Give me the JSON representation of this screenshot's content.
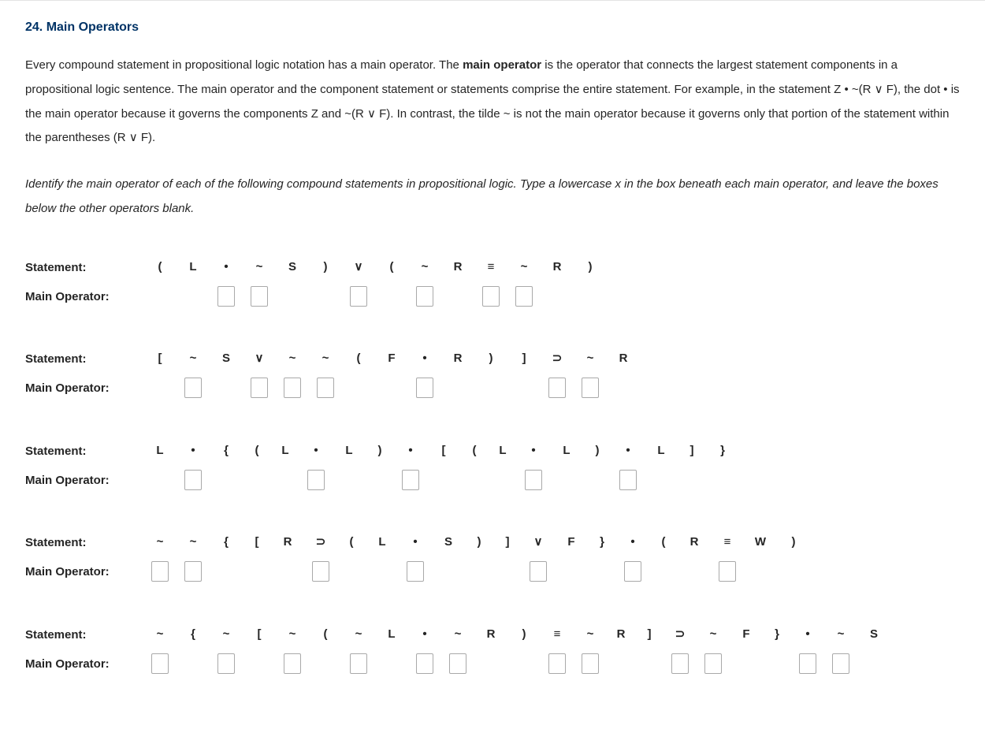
{
  "title": "24. Main Operators",
  "para1_a": "Every compound statement in propositional logic notation has a main operator. The ",
  "para1_b": "main operator",
  "para1_c": " is the operator that connects the largest statement components in a propositional logic sentence. The main operator and the component statement or statements comprise the entire statement. For example, in the statement Z • ~(R ∨ F), the dot • is the main operator because it governs the components Z and ~(R ∨ F). In contrast, the tilde ~ is not the main operator because it governs only that portion of the statement within the parentheses (R ∨ F).",
  "instructions": "Identify the main operator of each of the following compound statements in propositional logic. Type a lowercase x in the box beneath each main operator, and leave the boxes below the other operators blank.",
  "label_statement": "Statement:",
  "label_mainop": "Main Operator:",
  "problems": [
    {
      "cells": [
        {
          "t": "(",
          "box": false
        },
        {
          "t": "L",
          "box": false
        },
        {
          "t": "•",
          "box": true
        },
        {
          "t": "~",
          "box": true
        },
        {
          "t": "S",
          "box": false
        },
        {
          "t": ")",
          "box": false
        },
        {
          "t": "∨",
          "box": true
        },
        {
          "t": "(",
          "box": false
        },
        {
          "t": "~",
          "box": true
        },
        {
          "t": "R",
          "box": false
        },
        {
          "t": "≡",
          "box": true
        },
        {
          "t": "~",
          "box": true
        },
        {
          "t": "R",
          "box": false
        },
        {
          "t": ")",
          "box": false
        }
      ]
    },
    {
      "cells": [
        {
          "t": "[",
          "box": false
        },
        {
          "t": "~",
          "box": true
        },
        {
          "t": "S",
          "box": false
        },
        {
          "t": "∨",
          "box": true
        },
        {
          "t": "~",
          "box": true
        },
        {
          "t": "~",
          "box": true
        },
        {
          "t": "(",
          "box": false
        },
        {
          "t": "F",
          "box": false
        },
        {
          "t": "•",
          "box": true
        },
        {
          "t": "R",
          "box": false
        },
        {
          "t": ")",
          "box": false
        },
        {
          "t": "]",
          "box": false
        },
        {
          "t": "⊃",
          "box": true
        },
        {
          "t": "~",
          "box": true
        },
        {
          "t": "R",
          "box": false
        }
      ]
    },
    {
      "cells": [
        {
          "t": "L",
          "box": false
        },
        {
          "t": "•",
          "box": true
        },
        {
          "t": "{",
          "box": false
        },
        {
          "t": "(",
          "box": false,
          "cls": "tight"
        },
        {
          "t": "L",
          "box": false,
          "cls": "tight"
        },
        {
          "t": "•",
          "box": true
        },
        {
          "t": "L",
          "box": false
        },
        {
          "t": ")",
          "box": false,
          "cls": "tight"
        },
        {
          "t": "•",
          "box": true
        },
        {
          "t": "[",
          "box": false
        },
        {
          "t": "(",
          "box": false,
          "cls": "tight"
        },
        {
          "t": "L",
          "box": false,
          "cls": "tight"
        },
        {
          "t": "•",
          "box": true
        },
        {
          "t": "L",
          "box": false
        },
        {
          "t": ")",
          "box": false,
          "cls": "tight"
        },
        {
          "t": "•",
          "box": true
        },
        {
          "t": "L",
          "box": false
        },
        {
          "t": "]",
          "box": false,
          "cls": "tight"
        },
        {
          "t": "}",
          "box": false
        }
      ]
    },
    {
      "cells": [
        {
          "t": "~",
          "box": true
        },
        {
          "t": "~",
          "box": true
        },
        {
          "t": "{",
          "box": false
        },
        {
          "t": "[",
          "box": false,
          "cls": "tight"
        },
        {
          "t": "R",
          "box": false
        },
        {
          "t": "⊃",
          "box": true
        },
        {
          "t": "(",
          "box": false,
          "cls": "tight"
        },
        {
          "t": "L",
          "box": false
        },
        {
          "t": "•",
          "box": true
        },
        {
          "t": "S",
          "box": false
        },
        {
          "t": ")",
          "box": false,
          "cls": "tight"
        },
        {
          "t": "]",
          "box": false,
          "cls": "tight"
        },
        {
          "t": "∨",
          "box": true
        },
        {
          "t": "F",
          "box": false
        },
        {
          "t": "}",
          "box": false,
          "cls": "tight"
        },
        {
          "t": "•",
          "box": true
        },
        {
          "t": "(",
          "box": false,
          "cls": "tight"
        },
        {
          "t": "R",
          "box": false
        },
        {
          "t": "≡",
          "box": true
        },
        {
          "t": "W",
          "box": false
        },
        {
          "t": ")",
          "box": false
        }
      ]
    },
    {
      "cells": [
        {
          "t": "~",
          "box": true
        },
        {
          "t": "{",
          "box": false
        },
        {
          "t": "~",
          "box": true
        },
        {
          "t": "[",
          "box": false
        },
        {
          "t": "~",
          "box": true
        },
        {
          "t": "(",
          "box": false
        },
        {
          "t": "~",
          "box": true
        },
        {
          "t": "L",
          "box": false
        },
        {
          "t": "•",
          "box": true
        },
        {
          "t": "~",
          "box": true
        },
        {
          "t": "R",
          "box": false
        },
        {
          "t": ")",
          "box": false
        },
        {
          "t": "≡",
          "box": true
        },
        {
          "t": "~",
          "box": true
        },
        {
          "t": "R",
          "box": false,
          "cls": "tight"
        },
        {
          "t": "]",
          "box": false,
          "cls": "tight"
        },
        {
          "t": "⊃",
          "box": true
        },
        {
          "t": "~",
          "box": true
        },
        {
          "t": "F",
          "box": false
        },
        {
          "t": "}",
          "box": false,
          "cls": "tight"
        },
        {
          "t": "•",
          "box": true
        },
        {
          "t": "~",
          "box": true
        },
        {
          "t": "S",
          "box": false
        }
      ]
    }
  ]
}
